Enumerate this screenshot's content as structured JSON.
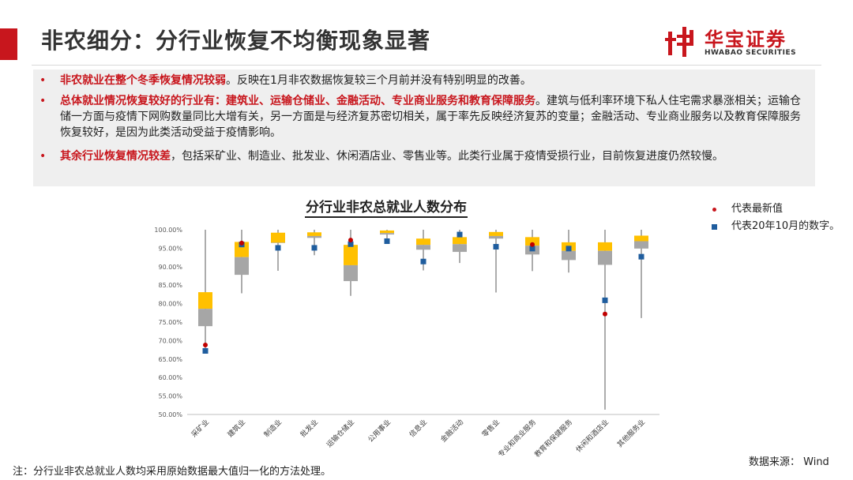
{
  "header": {
    "title": "非农细分：分行业恢复不均衡现象显著"
  },
  "logo": {
    "name_cn": "华宝证券",
    "name_en": "HWABAO SECURITIES",
    "accent": "#c8161d"
  },
  "bullets": [
    {
      "highlight": "非农就业在整个冬季恢复情况较弱",
      "text": "。反映在1月非农数据恢复较三个月前并没有特别明显的改善。"
    },
    {
      "highlight": "总体就业情况恢复较好的行业有：建筑业、运输仓储业、金融活动、专业商业服务和教育保障服务",
      "text": "。建筑与低利率环境下私人住宅需求暴涨相关；运输仓储一方面与疫情下网购数量同比大增有关，另一方面是与经济复苏密切相关，属于率先反映经济复苏的变量；金融活动、专业商业服务以及教育保障服务恢复较好，是因为此类活动受益于疫情影响。"
    },
    {
      "highlight": "其余行业恢复情况较差",
      "text": "，包括采矿业、制造业、批发业、休闲酒店业、零售业等。此类行业属于疫情受损行业，目前恢复进度仍然较慢。"
    }
  ],
  "legend": {
    "latest": "代表最新值",
    "oct2020": "代表20年10月的数字。"
  },
  "footer": {
    "note": "注：分行业非农总就业人数均采用原始数据最大值归一化的方法处理。",
    "source": "数据来源： Wind"
  },
  "chart_data": {
    "type": "boxplot",
    "title": "分行业非农总就业人数分布",
    "ylim": [
      50,
      100
    ],
    "yticks": [
      "100.00%",
      "95.00%",
      "90.00%",
      "85.00%",
      "80.00%",
      "75.00%",
      "70.00%",
      "65.00%",
      "60.00%",
      "55.00%",
      "50.00%"
    ],
    "colors": {
      "upper_box": "#ffc000",
      "lower_box": "#a6a6a6",
      "whisker": "#595959",
      "latest": "#c00000",
      "oct2020": "#1f5d9e"
    },
    "categories": [
      "采矿业",
      "建筑业",
      "制造业",
      "批发业",
      "运输仓储业",
      "公用事业",
      "信息业",
      "金融活动",
      "零售业",
      "专业和商业服务",
      "教育和保健服务",
      "休闲和酒店业",
      "其他服务业"
    ],
    "series": [
      {
        "name": "代表最新值",
        "values": [
          68.8,
          96.4,
          null,
          null,
          97.2,
          null,
          null,
          null,
          null,
          96.0,
          null,
          77.2,
          null
        ]
      },
      {
        "name": "代表20年10月的数字。",
        "values": [
          67.2,
          96.0,
          95.1,
          95.1,
          96.1,
          96.9,
          91.4,
          98.7,
          95.4,
          94.9,
          94.9,
          80.9,
          92.7
        ]
      }
    ],
    "boxes": [
      {
        "min": 67.0,
        "q1": 73.9,
        "median": 78.6,
        "q3": 83.1,
        "max": 100.0
      },
      {
        "min": 82.8,
        "q1": 87.8,
        "median": 92.6,
        "q3": 96.7,
        "max": 100.0
      },
      {
        "min": 88.9,
        "q1": 96.5,
        "median": 96.5,
        "q3": 99.2,
        "max": 100.0
      },
      {
        "min": 93.1,
        "q1": 97.8,
        "median": 98.3,
        "q3": 99.3,
        "max": 100.0
      },
      {
        "min": 82.1,
        "q1": 86.1,
        "median": 90.4,
        "q3": 95.9,
        "max": 100.0
      },
      {
        "min": 96.2,
        "q1": 98.7,
        "median": 99.1,
        "q3": 99.8,
        "max": 100.0
      },
      {
        "min": 89.0,
        "q1": 94.6,
        "median": 95.9,
        "q3": 97.6,
        "max": 100.0
      },
      {
        "min": 91.0,
        "q1": 94.0,
        "median": 96.1,
        "q3": 98.0,
        "max": 100.0
      },
      {
        "min": 83.0,
        "q1": 97.6,
        "median": 98.3,
        "q3": 99.4,
        "max": 100.0
      },
      {
        "min": 88.8,
        "q1": 93.3,
        "median": 95.7,
        "q3": 98.0,
        "max": 100.0
      },
      {
        "min": 88.4,
        "q1": 91.8,
        "median": 94.3,
        "q3": 96.6,
        "max": 100.0
      },
      {
        "min": 51.3,
        "q1": 90.5,
        "median": 94.3,
        "q3": 96.6,
        "max": 100.0
      },
      {
        "min": 76.1,
        "q1": 94.9,
        "median": 96.9,
        "q3": 98.4,
        "max": 100.0
      }
    ]
  }
}
